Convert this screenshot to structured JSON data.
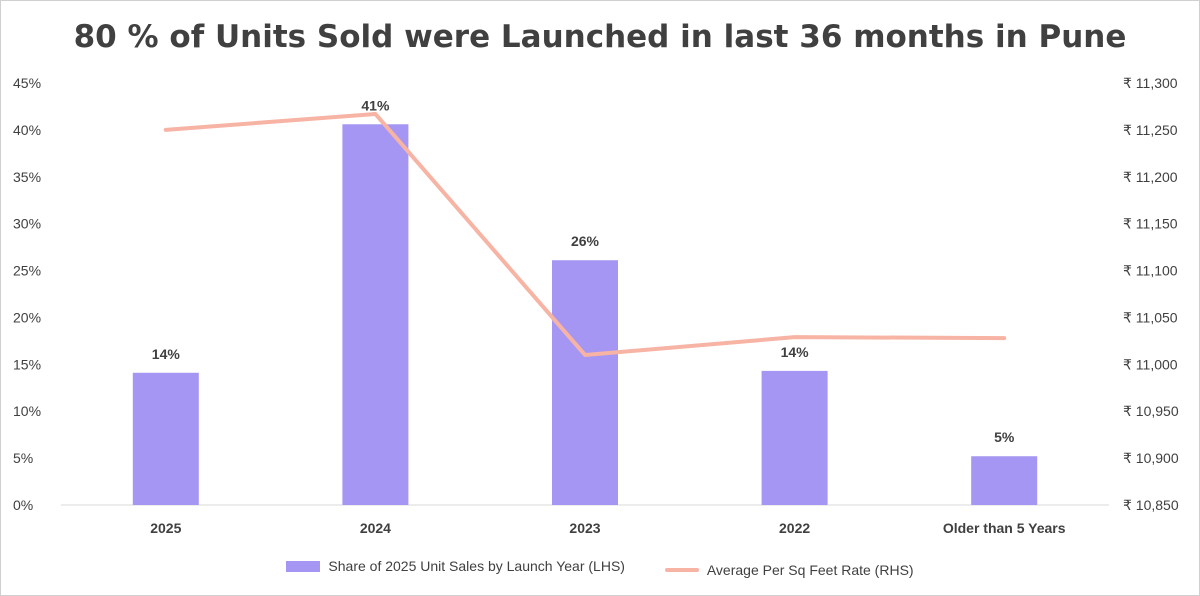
{
  "chart_data": {
    "type": "bar",
    "title": "80 % of Units Sold were Launched in last 36 months in Pune",
    "categories": [
      "2025",
      "2024",
      "2023",
      "2022",
      "Older than 5 Years"
    ],
    "series": [
      {
        "name": "Share of 2025 Unit Sales by Launch Year (LHS)",
        "type": "bar",
        "axis": "left",
        "color": "#a496f2",
        "values": [
          14,
          41,
          26,
          14,
          5
        ],
        "exact_values": [
          14.1,
          40.6,
          26.1,
          14.3,
          5.2
        ],
        "data_labels": [
          "14%",
          "41%",
          "26%",
          "14%",
          "5%"
        ]
      },
      {
        "name": "Average Per Sq Feet Rate (RHS)",
        "type": "line",
        "axis": "right",
        "color": "#f7b3a3",
        "values": [
          11250,
          11267,
          11010,
          11029,
          11028
        ]
      }
    ],
    "y_left": {
      "ylim": [
        0,
        45
      ],
      "ticks": [
        0,
        5,
        10,
        15,
        20,
        25,
        30,
        35,
        40,
        45
      ],
      "tick_labels": [
        "0%",
        "5%",
        "10%",
        "15%",
        "20%",
        "25%",
        "30%",
        "35%",
        "40%",
        "45%"
      ]
    },
    "y_right": {
      "ylim": [
        10850,
        11300
      ],
      "ticks": [
        10850,
        10900,
        10950,
        11000,
        11050,
        11100,
        11150,
        11200,
        11250,
        11300
      ],
      "tick_labels": [
        "₹ 10,850",
        "₹ 10,900",
        "₹ 10,950",
        "₹ 11,000",
        "₹ 11,050",
        "₹ 11,100",
        "₹ 11,150",
        "₹ 11,200",
        "₹ 11,250",
        "₹ 11,300"
      ]
    },
    "grid": false,
    "legend_position": "bottom"
  }
}
